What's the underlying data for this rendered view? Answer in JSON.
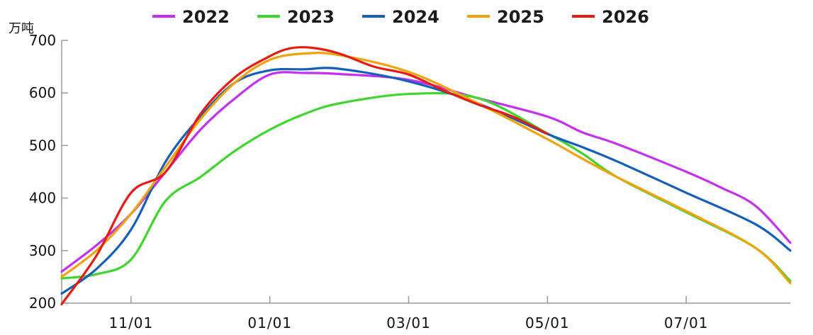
{
  "chart_data": {
    "type": "line",
    "ylabel": "万吨",
    "ylim": [
      200,
      700
    ],
    "yticks": [
      "200",
      "300",
      "400",
      "500",
      "600",
      "700"
    ],
    "xticks": [
      "11/01",
      "01/01",
      "03/01",
      "05/01",
      "07/01"
    ],
    "xtick_months": [
      1,
      3,
      5,
      7,
      9
    ],
    "xlim": [
      0,
      10.5
    ],
    "legend_position": "top",
    "grid": false,
    "series": [
      {
        "name": "2022",
        "color": "#c72ff0",
        "x": [
          0,
          0.5,
          1,
          1.5,
          2,
          2.5,
          3,
          3.5,
          4,
          5,
          6,
          7,
          7.5,
          8,
          9,
          9.5,
          10,
          10.5
        ],
        "y": [
          260,
          310,
          370,
          450,
          530,
          590,
          635,
          638,
          636,
          625,
          590,
          555,
          525,
          503,
          450,
          420,
          385,
          315
        ]
      },
      {
        "name": "2023",
        "color": "#3ed52d",
        "x": [
          0,
          0.5,
          1,
          1.5,
          2,
          2.5,
          3,
          3.5,
          4,
          5,
          6,
          7,
          7.5,
          8,
          9,
          10,
          10.5
        ],
        "y": [
          247,
          255,
          283,
          395,
          440,
          490,
          530,
          560,
          580,
          598,
          590,
          523,
          485,
          440,
          373,
          305,
          242
        ]
      },
      {
        "name": "2024",
        "color": "#1460b8",
        "x": [
          0,
          0.5,
          1,
          1.5,
          2,
          2.5,
          3,
          3.5,
          4,
          5,
          6,
          7,
          7.5,
          8,
          9,
          10,
          10.5
        ],
        "y": [
          218,
          265,
          340,
          470,
          555,
          620,
          643,
          645,
          646,
          622,
          580,
          522,
          497,
          470,
          410,
          350,
          300
        ]
      },
      {
        "name": "2025",
        "color": "#f2a20a",
        "x": [
          0,
          0.5,
          1,
          1.5,
          2,
          2.5,
          3,
          3.5,
          4,
          5,
          6,
          7,
          7.5,
          8,
          9,
          10,
          10.5
        ],
        "y": [
          250,
          300,
          370,
          460,
          550,
          620,
          663,
          675,
          672,
          640,
          580,
          512,
          475,
          440,
          375,
          305,
          238
        ]
      },
      {
        "name": "2026",
        "color": "#e81b14",
        "x": [
          0,
          0.5,
          1,
          1.5,
          2,
          2.5,
          3,
          3.3,
          3.6,
          4,
          4.5,
          5,
          5.5,
          6,
          6.5,
          7
        ],
        "y": [
          198,
          290,
          410,
          450,
          560,
          630,
          670,
          685,
          686,
          675,
          650,
          635,
          605,
          578,
          555,
          522
        ]
      }
    ]
  }
}
